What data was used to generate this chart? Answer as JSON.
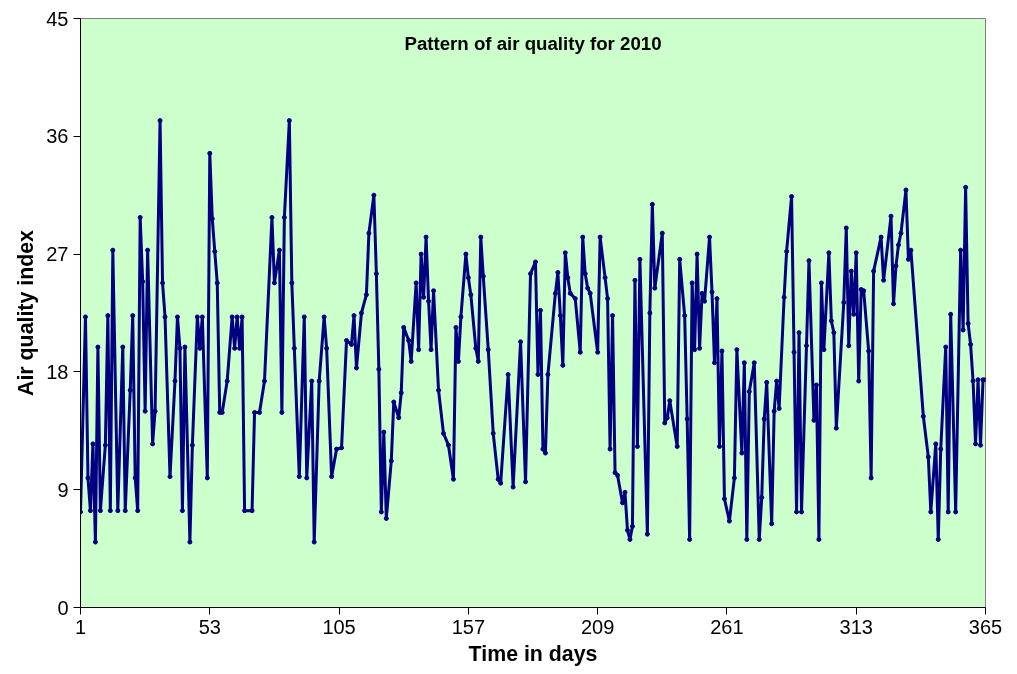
{
  "chart_data": {
    "type": "line",
    "title": "Pattern of air quality for 2010",
    "xlabel": "Time in days",
    "ylabel": "Air quality index",
    "xlim": [
      1,
      365
    ],
    "xticks": [
      1,
      53,
      105,
      157,
      209,
      261,
      313,
      365
    ],
    "ylim": [
      0,
      45
    ],
    "yticks": [
      0,
      9,
      18,
      27,
      36,
      45
    ],
    "grid": false,
    "marker": "circle",
    "line_style": "solid",
    "series": [
      {
        "color": "#000080",
        "x": [
          1,
          3,
          4,
          5,
          6,
          7,
          8,
          9,
          11,
          12,
          13,
          14,
          16,
          18,
          19,
          21,
          22,
          23,
          24,
          25,
          26,
          27,
          28,
          30,
          31,
          33,
          34,
          35,
          37,
          39,
          40,
          41,
          42,
          43,
          45,
          46,
          48,
          49,
          50,
          52,
          53,
          54,
          55,
          56,
          57,
          58,
          60,
          62,
          63,
          64,
          65,
          66,
          67,
          70,
          71,
          73,
          75,
          78,
          79,
          81,
          82,
          83,
          85,
          86,
          87,
          89,
          91,
          92,
          94,
          95,
          97,
          99,
          100,
          102,
          104,
          106,
          108,
          110,
          111,
          112,
          114,
          116,
          117,
          119,
          120,
          121,
          122,
          123,
          124,
          126,
          127,
          129,
          130,
          131,
          133,
          134,
          136,
          137,
          138,
          139,
          140,
          141,
          142,
          143,
          145,
          147,
          149,
          151,
          152,
          153,
          154,
          156,
          157,
          158,
          160,
          161,
          162,
          163,
          165,
          167,
          169,
          170,
          173,
          175,
          178,
          180,
          182,
          184,
          185,
          186,
          187,
          188,
          189,
          192,
          193,
          194,
          195,
          196,
          197,
          198,
          200,
          202,
          203,
          204,
          205,
          206,
          209,
          210,
          212,
          213,
          214,
          215,
          216,
          217,
          219,
          220,
          221,
          222,
          223,
          224,
          225,
          226,
          229,
          230,
          231,
          232,
          235,
          236,
          237,
          238,
          241,
          242,
          244,
          245,
          246,
          247,
          248,
          249,
          250,
          251,
          252,
          254,
          255,
          256,
          257,
          258,
          259,
          260,
          262,
          264,
          265,
          267,
          268,
          269,
          270,
          272,
          274,
          275,
          276,
          277,
          279,
          280,
          281,
          282,
          284,
          285,
          287,
          288,
          289,
          290,
          291,
          293,
          294,
          296,
          297,
          298,
          299,
          300,
          302,
          303,
          304,
          305,
          308,
          309,
          310,
          311,
          312,
          313,
          314,
          315,
          316,
          318,
          319,
          320,
          323,
          324,
          327,
          328,
          329,
          330,
          331,
          333,
          334,
          335,
          340,
          342,
          343,
          345,
          346,
          347,
          349,
          350,
          351,
          353,
          355,
          356,
          357,
          358,
          359,
          360,
          361,
          362,
          363,
          364,
          365
        ],
        "values": [
          7.3,
          22.2,
          9.9,
          7.4,
          12.5,
          5.0,
          19.9,
          7.4,
          12.4,
          22.3,
          7.4,
          27.3,
          7.4,
          19.9,
          7.4,
          16.6,
          22.3,
          9.9,
          7.4,
          29.8,
          24.9,
          15,
          27.3,
          12.5,
          15,
          37.2,
          24.8,
          22.2,
          10,
          17.3,
          22.2,
          19.8,
          7.4,
          19.9,
          5.0,
          12.4,
          22.2,
          19.8,
          22.2,
          9.9,
          34.7,
          29.7,
          27.2,
          24.8,
          14.9,
          14.9,
          17.3,
          22.2,
          19.8,
          22.2,
          19.8,
          22.2,
          7.4,
          7.4,
          14.9,
          14.9,
          17.3,
          29.8,
          24.8,
          27.3,
          14.9,
          29.8,
          37.2,
          24.8,
          19.8,
          10,
          22.2,
          9.9,
          17.3,
          5.0,
          17.3,
          22.2,
          19.8,
          10,
          12.1,
          12.2,
          20.4,
          20.1,
          22.3,
          18.3,
          22.5,
          23.9,
          28.6,
          31.5,
          25.5,
          18.2,
          7.3,
          13.4,
          6.8,
          11.2,
          15.7,
          14.5,
          16.4,
          21.4,
          20.4,
          18.8,
          24.8,
          19.7,
          27,
          23.7,
          28.3,
          23.4,
          19.7,
          24.2,
          16.6,
          13.3,
          12.4,
          9.8,
          21.4,
          18.8,
          22.2,
          27,
          25.2,
          23.9,
          19.8,
          18.8,
          28.3,
          25.3,
          19.7,
          13.3,
          9.8,
          9.5,
          17.8,
          9.2,
          20.3,
          9.6,
          25.5,
          26.4,
          17.8,
          22.7,
          12.1,
          11.8,
          17.8,
          24.0,
          25.6,
          22.3,
          18.5,
          27.1,
          25.2,
          24.0,
          23.6,
          19.5,
          28.3,
          25.5,
          24.4,
          24,
          19.5,
          28.3,
          25.2,
          23.6,
          12.1,
          22.3,
          10.3,
          10.1,
          8.0,
          8.8,
          5.9,
          5.2,
          6.2,
          25.0,
          12.3,
          26.6,
          5.6,
          22.5,
          30.8,
          24.4,
          28.6,
          14.1,
          14.5,
          15.8,
          12.3,
          26.6,
          22.3,
          14.4,
          5.2,
          24.8,
          19.7,
          27,
          19.8,
          24.0,
          23.4,
          28.3,
          24.1,
          18.7,
          23.6,
          12.3,
          19.6,
          8.3,
          6.6,
          9.9,
          19.7,
          11.8,
          18.7,
          5.2,
          16.5,
          18.7,
          5.2,
          8.4,
          14.4,
          17.2,
          6.4,
          15.0,
          17.3,
          15.2,
          23.7,
          27.2,
          31.4,
          19.5,
          7.3,
          21.0,
          7.3,
          20.0,
          26.5,
          14.3,
          17.0,
          5.2,
          24.8,
          19.7,
          27.1,
          21.9,
          21.0,
          13.7,
          23.3,
          29.0,
          20.0,
          25.7,
          22.4,
          27.1,
          17.3,
          24.3,
          24.2,
          19.6,
          9.9,
          25.7,
          28.3,
          25.0,
          29.9,
          23.2,
          26.1,
          27.7,
          28.6,
          31.9,
          26.6,
          27.3,
          14.6,
          11.5,
          7.3,
          12.5,
          5.2,
          12.1,
          19.9,
          7.3,
          22.4,
          7.3,
          27.3,
          21.2,
          32.1,
          21.7,
          20.1,
          17.3,
          12.5,
          17.4,
          12.4,
          17.4,
          17.4
        ]
      }
    ]
  }
}
